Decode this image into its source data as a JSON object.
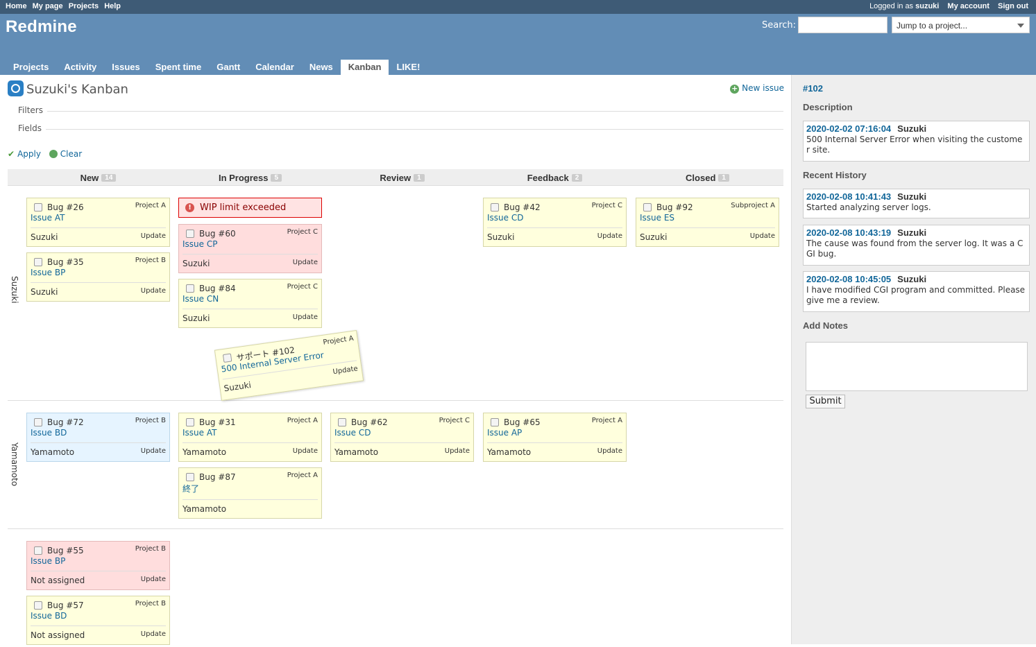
{
  "top_menu": {
    "left": [
      "Home",
      "My page",
      "Projects",
      "Help"
    ],
    "logged_as_prefix": "Logged in as",
    "logged_as_user": "suzuki",
    "my_account": "My account",
    "sign_out": "Sign out"
  },
  "header": {
    "title": "Redmine",
    "search_label": "Search:",
    "jump_placeholder": "Jump to a project..."
  },
  "main_menu": [
    "Projects",
    "Activity",
    "Issues",
    "Spent time",
    "Gantt",
    "Calendar",
    "News",
    "Kanban",
    "LIKE!"
  ],
  "main_menu_selected": "Kanban",
  "page": {
    "title": "Suzuki's Kanban",
    "new_issue": "New issue",
    "filters": "Filters",
    "fields": "Fields",
    "apply": "Apply",
    "clear": "Clear"
  },
  "columns": [
    {
      "name": "New",
      "count": "14"
    },
    {
      "name": "In Progress",
      "count": "5"
    },
    {
      "name": "Review",
      "count": "1"
    },
    {
      "name": "Feedback",
      "count": "2"
    },
    {
      "name": "Closed",
      "count": "1"
    }
  ],
  "lanes": [
    "Suzuki",
    "Yamamoto",
    ""
  ],
  "wip_message": "WIP limit exceeded",
  "cards": {
    "c26": {
      "num": "Bug #26",
      "project": "Project A",
      "subject": "Issue AT",
      "assignee": "Suzuki",
      "update": "Update"
    },
    "c35": {
      "num": "Bug #35",
      "project": "Project B",
      "subject": "Issue BP",
      "assignee": "Suzuki",
      "update": "Update"
    },
    "c60": {
      "num": "Bug #60",
      "project": "Project C",
      "subject": "Issue CP",
      "assignee": "Suzuki",
      "update": "Update"
    },
    "c84": {
      "num": "Bug #84",
      "project": "Project C",
      "subject": "Issue CN",
      "assignee": "Suzuki",
      "update": "Update"
    },
    "c102": {
      "num": "サポート #102",
      "project": "Project A",
      "subject": "500 Internal Server Error",
      "assignee": "Suzuki",
      "update": "Update"
    },
    "c42": {
      "num": "Bug #42",
      "project": "Project C",
      "subject": "Issue CD",
      "assignee": "Suzuki",
      "update": "Update"
    },
    "c92": {
      "num": "Bug #92",
      "project": "Subproject A",
      "subject": "Issue ES",
      "assignee": "Suzuki",
      "update": "Update"
    },
    "c72": {
      "num": "Bug #72",
      "project": "Project B",
      "subject": "Issue BD",
      "assignee": "Yamamoto",
      "update": "Update"
    },
    "c31": {
      "num": "Bug #31",
      "project": "Project A",
      "subject": "Issue AT",
      "assignee": "Yamamoto",
      "update": "Update"
    },
    "c87": {
      "num": "Bug #87",
      "project": "Project A",
      "subject": "終了",
      "assignee": "Yamamoto",
      "update": ""
    },
    "c62": {
      "num": "Bug #62",
      "project": "Project C",
      "subject": "Issue CD",
      "assignee": "Yamamoto",
      "update": "Update"
    },
    "c65": {
      "num": "Bug #65",
      "project": "Project A",
      "subject": "Issue AP",
      "assignee": "Yamamoto",
      "update": "Update"
    },
    "c55": {
      "num": "Bug #55",
      "project": "Project B",
      "subject": "Issue BP",
      "assignee": "Not assigned",
      "update": "Update"
    },
    "c57": {
      "num": "Bug #57",
      "project": "Project B",
      "subject": "Issue BD",
      "assignee": "Not assigned",
      "update": "Update"
    }
  },
  "sidebar": {
    "issue": "#102",
    "description_title": "Description",
    "description": {
      "time": "2020-02-02 07:16:04",
      "user": "Suzuki",
      "text": "500 Internal Server Error when visiting the customer site."
    },
    "history_title": "Recent History",
    "history": [
      {
        "time": "2020-02-08 10:41:43",
        "user": "Suzuki",
        "text": "Started analyzing server logs."
      },
      {
        "time": "2020-02-08 10:43:19",
        "user": "Suzuki",
        "text": "The cause was found from the server log. It was a CGI bug."
      },
      {
        "time": "2020-02-08 10:45:05",
        "user": "Suzuki",
        "text": "I have modified CGI program and committed. Please give me a review."
      }
    ],
    "add_notes_title": "Add Notes",
    "submit": "Submit"
  },
  "colors": {
    "header": "#628db6",
    "top_menu": "#3e5b76",
    "card_normal": "#ffffdd",
    "card_red": "#ffdddd",
    "card_blue": "#e6f4ff",
    "link": "#116699"
  }
}
